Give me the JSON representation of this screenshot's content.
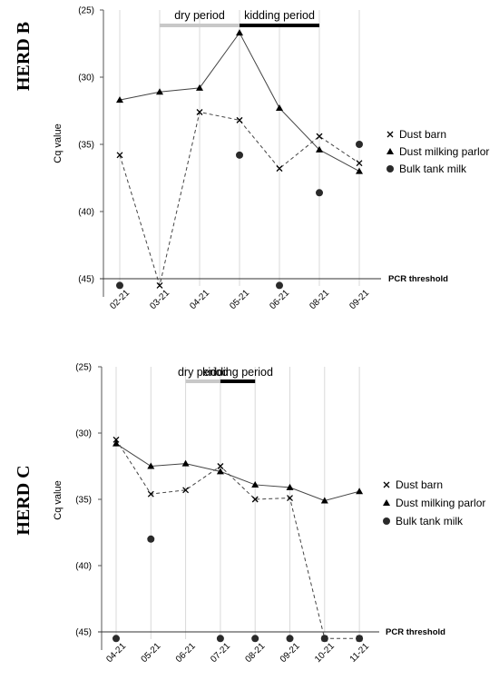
{
  "legend_labels": [
    "Dust barn",
    "Dust milking parlor",
    "Bulk tank milk"
  ],
  "chart_data": [
    {
      "type": "line",
      "title": "HERD B",
      "ylabel": "Cq value",
      "ylim": [
        25,
        45
      ],
      "y_reversed": true,
      "y_ticks": [
        "(25)",
        "(30)",
        "(35)",
        "(40)",
        "(45)"
      ],
      "y_tick_values": [
        25,
        30,
        35,
        40,
        45
      ],
      "categories": [
        "02-21",
        "03-21",
        "04-21",
        "05-21",
        "06-21",
        "08-21",
        "09-21"
      ],
      "threshold": {
        "label": "PCR threshold",
        "value": 45
      },
      "periods": [
        {
          "label": "dry period",
          "start": 1,
          "end": 3,
          "color": "#c8c8c8"
        },
        {
          "label": "kidding period",
          "start": 3,
          "end": 5,
          "color": "#000000"
        }
      ],
      "series": [
        {
          "name": "Dust barn",
          "marker": "x",
          "line": "dashed",
          "values": [
            35.8,
            45.5,
            32.6,
            33.2,
            36.8,
            34.4,
            36.4
          ]
        },
        {
          "name": "Dust milking parlor",
          "marker": "triangle",
          "line": "solid",
          "values": [
            31.7,
            31.1,
            30.8,
            26.7,
            32.3,
            35.4,
            37.0
          ]
        },
        {
          "name": "Bulk tank milk",
          "marker": "circle",
          "line": "none",
          "values": [
            45.5,
            null,
            null,
            35.8,
            45.5,
            38.6,
            35.0
          ]
        }
      ]
    },
    {
      "type": "line",
      "title": "HERD C",
      "ylabel": "Cq value",
      "ylim": [
        25,
        45
      ],
      "y_reversed": true,
      "y_ticks": [
        "(25)",
        "(30)",
        "(35)",
        "(40)",
        "(45)"
      ],
      "y_tick_values": [
        25,
        30,
        35,
        40,
        45
      ],
      "categories": [
        "04-21",
        "05-21",
        "06-21",
        "07-21",
        "08-21",
        "09-21",
        "10-21",
        "11-21"
      ],
      "threshold": {
        "label": "PCR threshold",
        "value": 45
      },
      "periods": [
        {
          "label": "dry period",
          "start": 2,
          "end": 3,
          "color": "#c8c8c8"
        },
        {
          "label": "kidding period",
          "start": 3,
          "end": 4,
          "color": "#000000"
        }
      ],
      "series": [
        {
          "name": "Dust barn",
          "marker": "x",
          "line": "dashed",
          "values": [
            30.5,
            34.6,
            34.3,
            32.5,
            35.0,
            34.9,
            45.5,
            45.5
          ]
        },
        {
          "name": "Dust milking parlor",
          "marker": "triangle",
          "line": "solid",
          "values": [
            30.8,
            32.5,
            32.3,
            32.9,
            33.9,
            34.1,
            35.1,
            34.4
          ]
        },
        {
          "name": "Bulk tank milk",
          "marker": "circle",
          "line": "none",
          "values": [
            45.5,
            38.0,
            null,
            45.5,
            45.5,
            45.5,
            45.5,
            45.5
          ]
        }
      ]
    }
  ]
}
